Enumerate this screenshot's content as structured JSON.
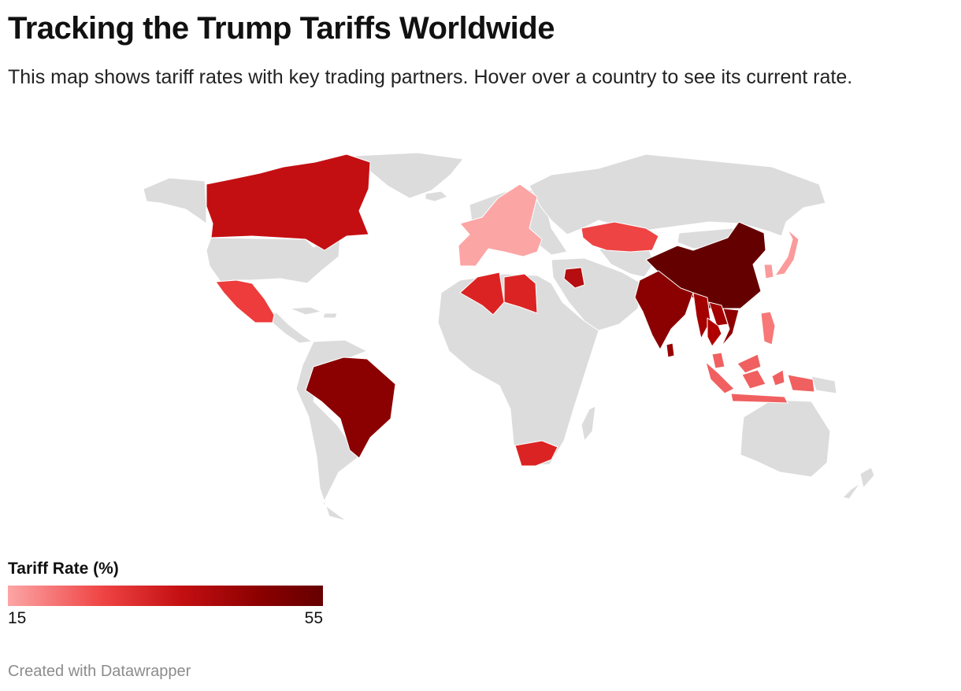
{
  "header": {
    "title": "Tracking the Trump Tariffs Worldwide",
    "subtitle": "This map shows tariff rates with key trading partners. Hover over a country to see its current rate."
  },
  "map": {
    "base_color": "#dcdcdc",
    "countries": [
      {
        "name": "Canada",
        "tariff": 35,
        "color": "#c40f12"
      },
      {
        "name": "Mexico",
        "tariff": 25,
        "color": "#ee3b3b"
      },
      {
        "name": "Brazil",
        "tariff": 50,
        "color": "#8b0000"
      },
      {
        "name": "European Union",
        "tariff": 15,
        "color": "#fca5a5"
      },
      {
        "name": "Algeria",
        "tariff": 30,
        "color": "#dc2323"
      },
      {
        "name": "Libya",
        "tariff": 30,
        "color": "#dc2323"
      },
      {
        "name": "South Africa",
        "tariff": 30,
        "color": "#dc2323"
      },
      {
        "name": "Kazakhstan",
        "tariff": 25,
        "color": "#ee4444"
      },
      {
        "name": "Iraq",
        "tariff": 35,
        "color": "#b50d10"
      },
      {
        "name": "China",
        "tariff": 55,
        "color": "#650000"
      },
      {
        "name": "India",
        "tariff": 50,
        "color": "#8b0000"
      },
      {
        "name": "Myanmar",
        "tariff": 40,
        "color": "#a30000"
      },
      {
        "name": "Laos",
        "tariff": 40,
        "color": "#a30000"
      },
      {
        "name": "Thailand",
        "tariff": 36,
        "color": "#b00000"
      },
      {
        "name": "Vietnam",
        "tariff": 46,
        "color": "#8f0000"
      },
      {
        "name": "Sri Lanka",
        "tariff": 44,
        "color": "#960000"
      },
      {
        "name": "Japan",
        "tariff": 15,
        "color": "#fb9a9a"
      },
      {
        "name": "South Korea",
        "tariff": 15,
        "color": "#fb9a9a"
      },
      {
        "name": "Philippines",
        "tariff": 19,
        "color": "#f87878"
      },
      {
        "name": "Malaysia",
        "tariff": 19,
        "color": "#f06060"
      },
      {
        "name": "Indonesia",
        "tariff": 19,
        "color": "#f06060"
      }
    ]
  },
  "legend": {
    "title": "Tariff Rate (%)",
    "min_label": "15",
    "max_label": "55"
  },
  "footer": {
    "credit": "Created with Datawrapper"
  }
}
